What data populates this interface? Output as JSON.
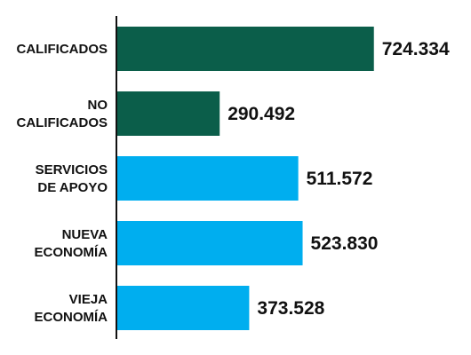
{
  "chart_data": {
    "type": "bar",
    "orientation": "horizontal",
    "categories": [
      [
        "CALIFICADOS"
      ],
      [
        "NO",
        "CALIFICADOS"
      ],
      [
        "SERVICIOS",
        "DE APOYO"
      ],
      [
        "NUEVA",
        "ECONOMÍA"
      ],
      [
        "VIEJA",
        "ECONOMÍA"
      ]
    ],
    "values": [
      724334,
      290492,
      511572,
      523830,
      373528
    ],
    "value_labels": [
      "724.334",
      "290.492",
      "511.572",
      "523.830",
      "373.528"
    ],
    "bar_colors": [
      "#0b5e4a",
      "#0b5e4a",
      "#00aeef",
      "#00aeef",
      "#00aeef"
    ],
    "axis_color": "#111111",
    "xlim": [
      0,
      800000
    ],
    "grid": false,
    "title": "",
    "xlabel": "",
    "ylabel": ""
  }
}
